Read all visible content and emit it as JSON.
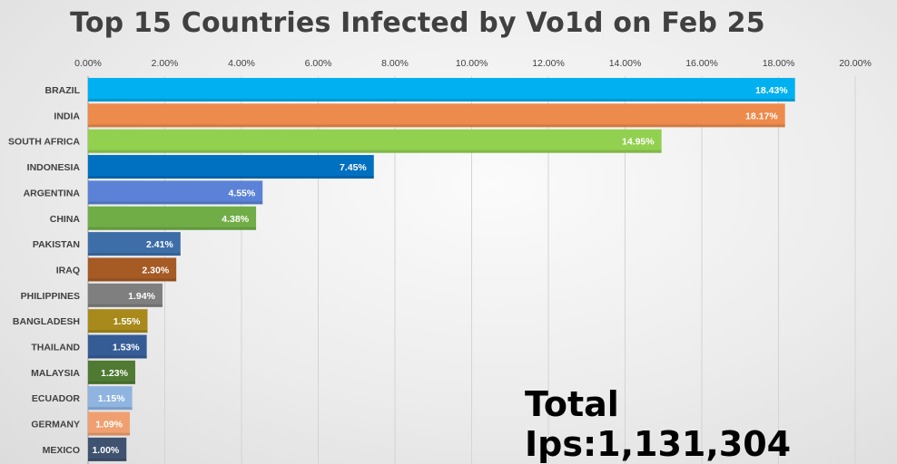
{
  "chart_data": {
    "type": "bar",
    "orientation": "horizontal",
    "title": "Top 15 Countries Infected by Vo1d on Feb 25",
    "categories": [
      "BRAZIL",
      "INDIA",
      "SOUTH AFRICA",
      "INDONESIA",
      "ARGENTINA",
      "CHINA",
      "PAKISTAN",
      "IRAQ",
      "PHILIPPINES",
      "BANGLADESH",
      "THAILAND",
      "MALAYSIA",
      "ECUADOR",
      "GERMANY",
      "MEXICO"
    ],
    "values": [
      18.43,
      18.17,
      14.95,
      7.45,
      4.55,
      4.38,
      2.41,
      2.3,
      1.94,
      1.55,
      1.53,
      1.23,
      1.15,
      1.09,
      1.0
    ],
    "value_labels": [
      "18.43%",
      "18.17%",
      "14.95%",
      "7.45%",
      "4.55%",
      "4.38%",
      "2.41%",
      "2.30%",
      "1.94%",
      "1.55%",
      "1.53%",
      "1.23%",
      "1.15%",
      "1.09%",
      "1.00%"
    ],
    "colors": [
      "#00b0f0",
      "#ed8b4c",
      "#92d050",
      "#0070c0",
      "#5b82d6",
      "#70ad47",
      "#3d6ea8",
      "#a65a24",
      "#7f7f7f",
      "#a88a1c",
      "#365c96",
      "#4f7a33",
      "#8fb4e0",
      "#f0a070",
      "#3f5270"
    ],
    "x_ticks": [
      "0.00%",
      "2.00%",
      "4.00%",
      "6.00%",
      "8.00%",
      "10.00%",
      "12.00%",
      "14.00%",
      "16.00%",
      "18.00%",
      "20.00%"
    ],
    "xlim": [
      0,
      20
    ],
    "axis_position": "top",
    "grid": true,
    "legend": "none"
  },
  "annotation": {
    "total_ips": "Total Ips:1,131,304"
  }
}
